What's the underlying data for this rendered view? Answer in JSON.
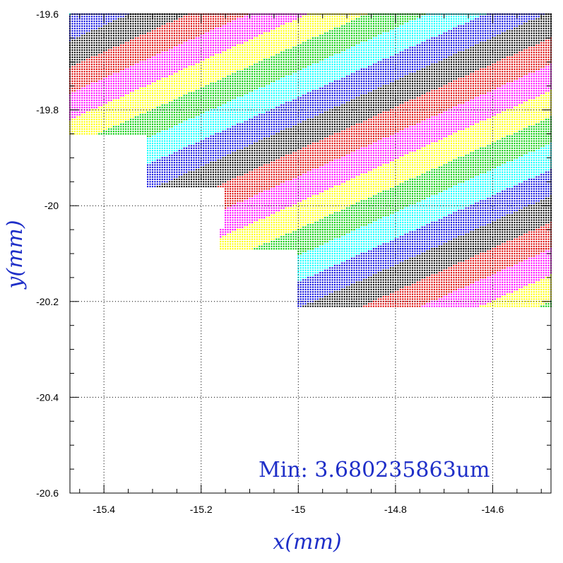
{
  "chart_data": {
    "type": "scatter",
    "title": "",
    "xlabel": "x(mm)",
    "ylabel": "y(mm)",
    "xlim": [
      -15.47,
      -14.48
    ],
    "ylim": [
      -20.6,
      -19.6
    ],
    "x_ticks": [
      -15.4,
      -15.2,
      -15,
      -14.8,
      -14.6
    ],
    "x_tick_labels": [
      "-15.4",
      "-15.2",
      "-15",
      "-14.8",
      "-14.6"
    ],
    "y_ticks": [
      -19.6,
      -19.8,
      -20,
      -20.2,
      -20.4,
      -20.6
    ],
    "y_tick_labels": [
      "-19.6",
      "-19.8",
      "-20",
      "-20.2",
      "-20.4",
      "-20.6"
    ],
    "grid": true,
    "annotation": "Min: 3.680235863um",
    "grid_pitch_mm": 0.01,
    "color_cycle": [
      "#00ffff",
      "#00cc00",
      "#ffff00",
      "#ff00ff",
      "#dd0000",
      "#000000",
      "#0000dd"
    ],
    "band_rule": {
      "description": "Points are colored in diagonal bands; band index = floor((y - slope*x - offset)/width) mod 7",
      "slope_dy_per_dx": 0.45,
      "band_width_mm": 0.055
    },
    "region_rows": [
      {
        "y_range": [
          -19.6,
          -19.85
        ],
        "x_range": [
          -15.47,
          -14.48
        ]
      },
      {
        "y_range": [
          -19.85,
          -19.96
        ],
        "x_range": [
          -15.31,
          -14.48
        ]
      },
      {
        "y_range": [
          -19.96,
          -20.05
        ],
        "x_range": [
          -15.15,
          -14.48
        ]
      },
      {
        "y_range": [
          -20.05,
          -20.09
        ],
        "x_range": [
          -15.16,
          -14.48
        ]
      },
      {
        "y_range": [
          -20.09,
          -20.21
        ],
        "x_range": [
          -15.0,
          -14.48
        ]
      }
    ]
  }
}
